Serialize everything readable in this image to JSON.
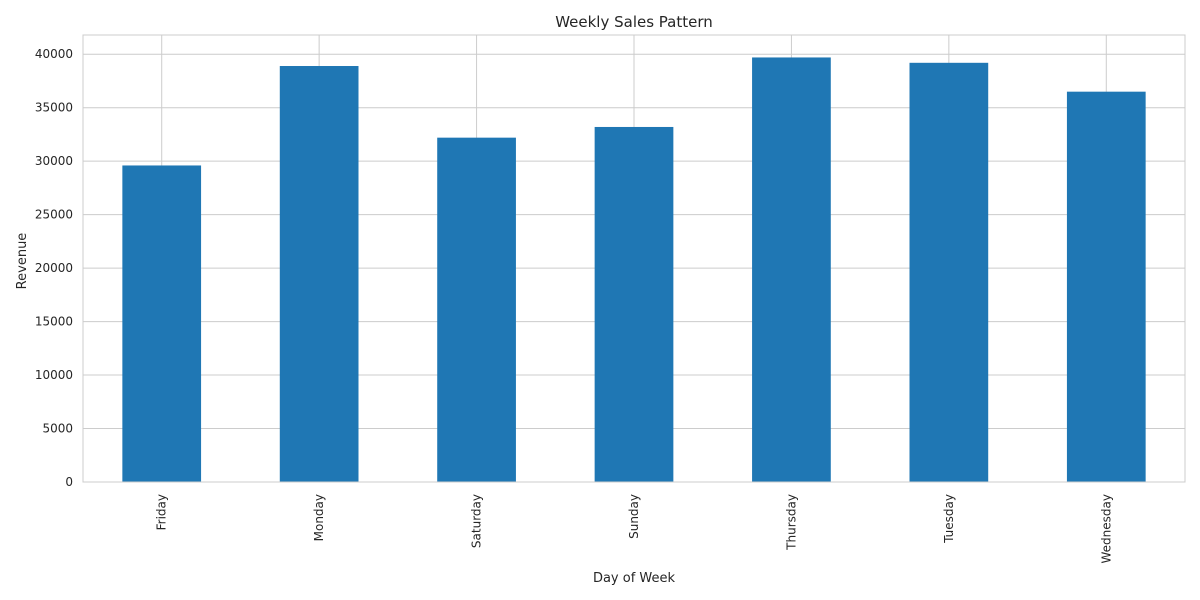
{
  "chart_data": {
    "type": "bar",
    "title": "Weekly Sales Pattern",
    "xlabel": "Day of Week",
    "ylabel": "Revenue",
    "categories": [
      "Friday",
      "Monday",
      "Saturday",
      "Sunday",
      "Thursday",
      "Tuesday",
      "Wednesday"
    ],
    "values": [
      29600,
      38900,
      32200,
      33200,
      39700,
      39200,
      36500
    ],
    "ylim": [
      0,
      41800
    ],
    "yticks": [
      0,
      5000,
      10000,
      15000,
      20000,
      25000,
      30000,
      35000,
      40000
    ],
    "grid": true,
    "legend": "none",
    "bar_color": "#1f77b4"
  }
}
